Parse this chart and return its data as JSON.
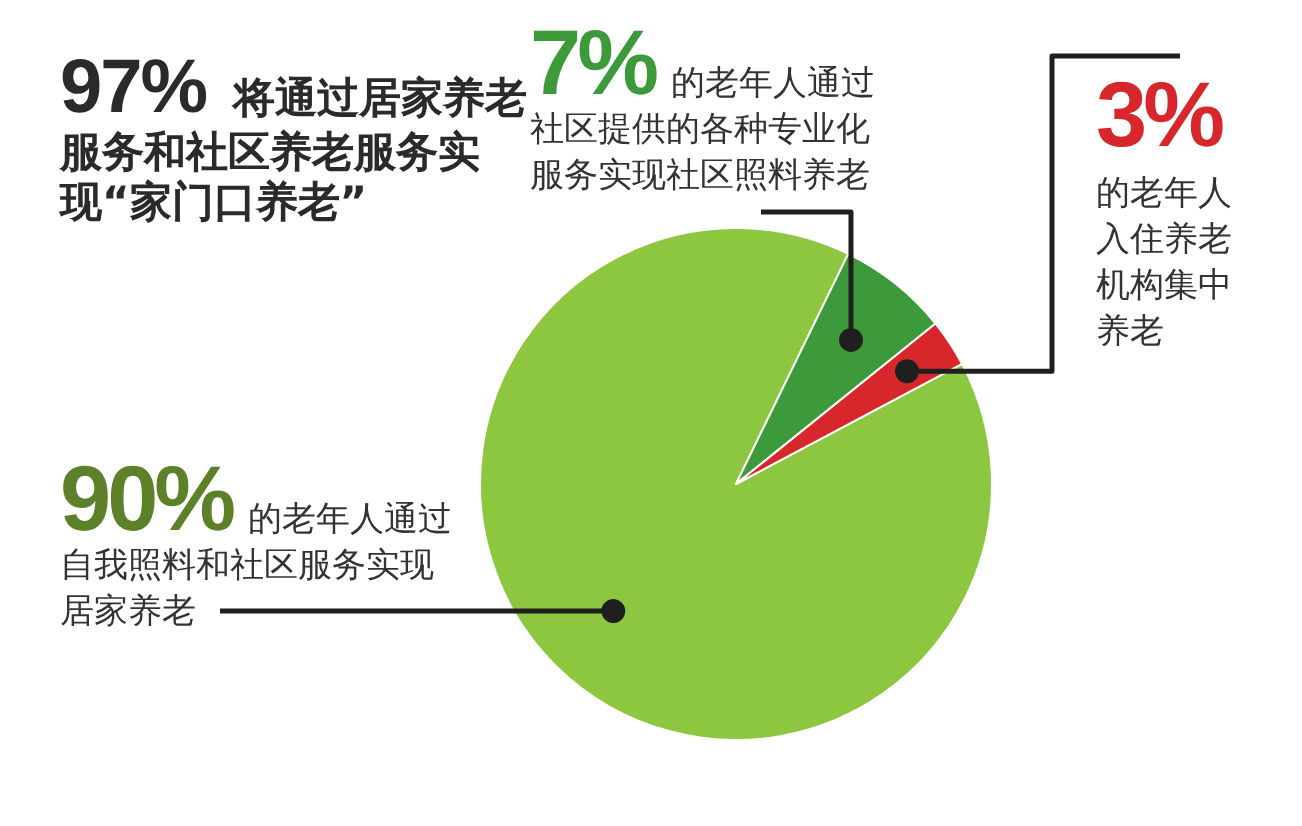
{
  "chart_data": {
    "type": "pie",
    "title": "97% 将通过居家养老服务和社区养老服务实现“家门口养老”",
    "categories": [
      "的老年人通过自我照料和社区服务实现居家养老",
      "的老年人通过社区提供的各种专业化服务实现社区照料养老",
      "的老年人入住养老机构集中养老"
    ],
    "values": [
      90,
      7,
      3
    ],
    "colors": [
      "#8dc63f",
      "#3d9a3a",
      "#d7272b"
    ],
    "value_labels": [
      "90%",
      "7%",
      "3%"
    ]
  }
}
